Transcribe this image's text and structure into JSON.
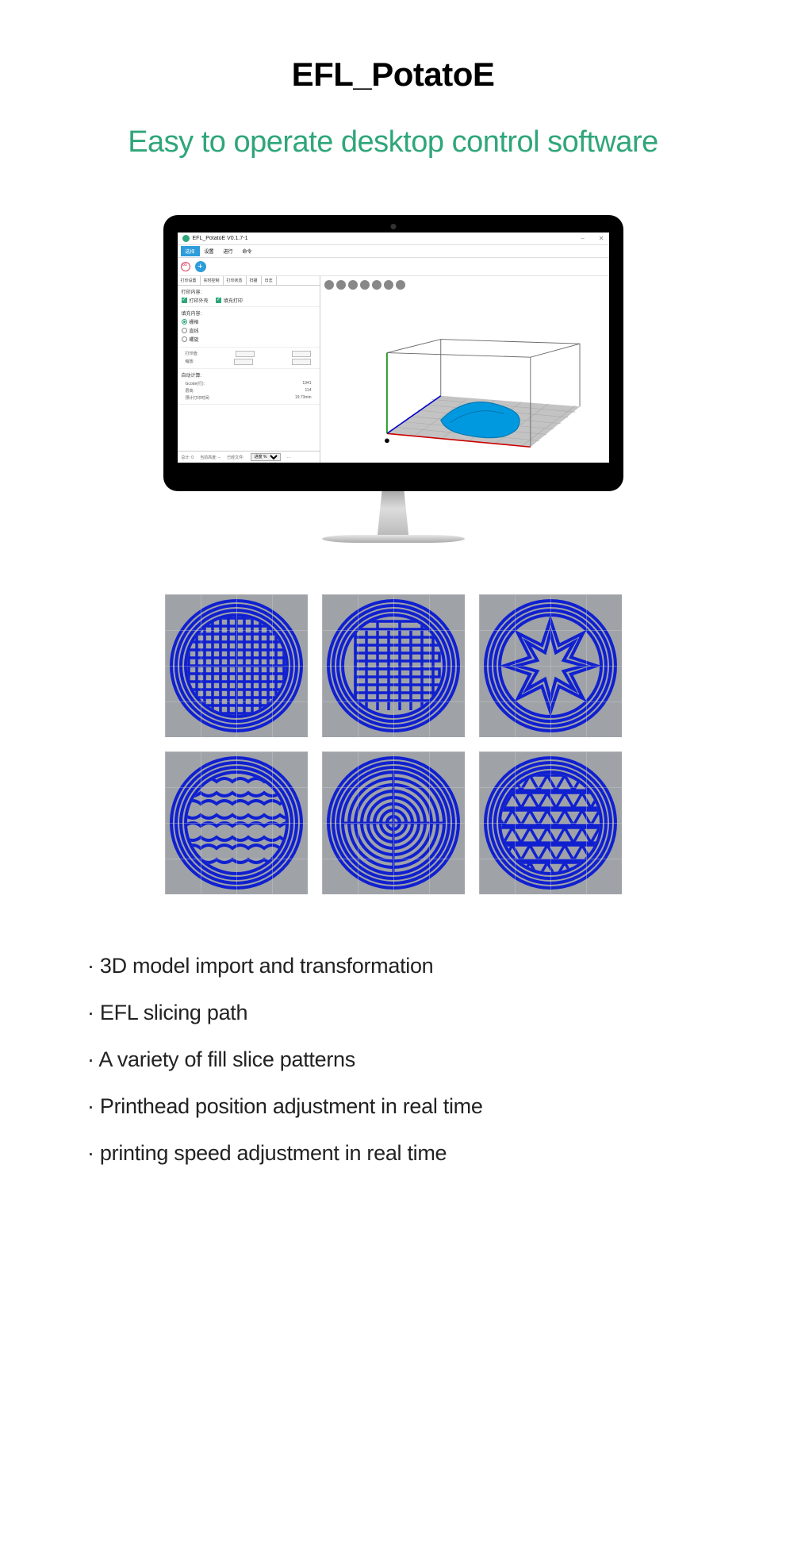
{
  "title": "EFL_PotatoE",
  "subtitle": "Easy to operate desktop control software",
  "app": {
    "titlebar": "EFL_PotatoE V0.1.7-1",
    "menus": [
      "选择",
      "设置",
      "进行",
      "命令"
    ],
    "side": {
      "tabs": [
        "打印设置",
        "实时控制",
        "打印状态",
        "扫描",
        "日志"
      ],
      "sec1_label": "打印内容:",
      "chk1": "打印外壳",
      "chk2": "填充打印",
      "sec2_label": "填充内容:",
      "radios": [
        {
          "label": "栅格",
          "on": true
        },
        {
          "label": "直线",
          "on": false
        },
        {
          "label": "螺旋",
          "on": false
        }
      ],
      "param1_label": "打印值:",
      "param2_label": "缩放:",
      "sec3_label": "自动计算:",
      "kv": [
        {
          "k": "Gcode(行):",
          "v": "1941"
        },
        {
          "k": "层高:",
          "v": "114"
        },
        {
          "k": "预计打印时间:",
          "v": "19.73min"
        }
      ]
    },
    "status": [
      "总计: 0",
      "当前高度: --",
      "已经文件:",
      "进度 %",
      "…"
    ]
  },
  "patterns": {
    "stroke": "#1020d0",
    "bg": "#9fa3a8",
    "types": [
      "grid",
      "meander",
      "star",
      "wave",
      "concentric",
      "triangle"
    ]
  },
  "features": [
    "3D model import and transformation",
    "EFL slicing path",
    "A variety of fill slice patterns",
    "Printhead position adjustment in real time",
    "printing speed adjustment in real time"
  ]
}
